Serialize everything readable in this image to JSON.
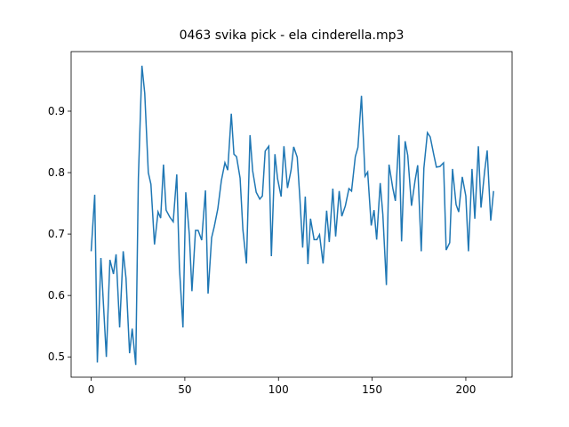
{
  "chart_data": {
    "type": "line",
    "title": "0463 svika pick - ela cinderella.mp3",
    "x": [
      0,
      1.9,
      3.3,
      5.2,
      8.1,
      10,
      11.9,
      13.3,
      15.2,
      17.1,
      18.6,
      20.5,
      21.9,
      23.8,
      25.2,
      27.1,
      28.6,
      30.5,
      31.9,
      33.8,
      35.7,
      37.1,
      38.6,
      40,
      41.9,
      43.8,
      45.7,
      47.1,
      49,
      50.5,
      52.4,
      53.8,
      55.7,
      57.1,
      59,
      61,
      62.4,
      64.3,
      65.7,
      67.6,
      69.5,
      71.4,
      72.9,
      74.8,
      76.2,
      77.6,
      79.5,
      81,
      82.9,
      84.8,
      86.2,
      88.1,
      90,
      91.4,
      92.9,
      94.8,
      96.2,
      98.1,
      99.5,
      101.4,
      102.9,
      104.8,
      106.7,
      108.1,
      110,
      111.4,
      112.9,
      114.3,
      115.7,
      117.1,
      119,
      120.5,
      121.9,
      123.8,
      125.7,
      127.1,
      129,
      130.5,
      132.4,
      133.8,
      135.7,
      137.6,
      139,
      141,
      142.4,
      144.3,
      146.2,
      147.6,
      149.5,
      151,
      152.4,
      154.3,
      155.7,
      157.6,
      159,
      161,
      162.4,
      164.3,
      165.7,
      167.6,
      169,
      171,
      172.9,
      174.3,
      176.2,
      177.6,
      179.5,
      181,
      182.9,
      184.3,
      186.2,
      188.1,
      189.5,
      191.4,
      192.9,
      194.8,
      196.2,
      198.1,
      200,
      201.4,
      203.3,
      204.8,
      206.7,
      208.1,
      210,
      211.4,
      213.3,
      214.8
    ],
    "series": [
      {
        "color": "#1f77b4",
        "values": [
          0.672,
          0.764,
          0.491,
          0.661,
          0.5,
          0.658,
          0.635,
          0.667,
          0.548,
          0.672,
          0.628,
          0.506,
          0.546,
          0.487,
          0.791,
          0.974,
          0.929,
          0.8,
          0.781,
          0.683,
          0.736,
          0.726,
          0.813,
          0.739,
          0.728,
          0.72,
          0.797,
          0.646,
          0.548,
          0.768,
          0.699,
          0.607,
          0.706,
          0.706,
          0.69,
          0.771,
          0.603,
          0.694,
          0.712,
          0.741,
          0.787,
          0.816,
          0.804,
          0.896,
          0.83,
          0.826,
          0.791,
          0.707,
          0.652,
          0.861,
          0.803,
          0.768,
          0.757,
          0.762,
          0.835,
          0.843,
          0.664,
          0.83,
          0.79,
          0.761,
          0.843,
          0.775,
          0.804,
          0.842,
          0.825,
          0.759,
          0.678,
          0.761,
          0.651,
          0.725,
          0.691,
          0.691,
          0.699,
          0.652,
          0.738,
          0.687,
          0.774,
          0.696,
          0.77,
          0.729,
          0.746,
          0.774,
          0.77,
          0.826,
          0.841,
          0.925,
          0.794,
          0.801,
          0.714,
          0.739,
          0.691,
          0.783,
          0.732,
          0.617,
          0.813,
          0.775,
          0.754,
          0.861,
          0.688,
          0.851,
          0.828,
          0.746,
          0.787,
          0.812,
          0.672,
          0.807,
          0.865,
          0.858,
          0.829,
          0.809,
          0.81,
          0.816,
          0.674,
          0.686,
          0.806,
          0.748,
          0.736,
          0.793,
          0.762,
          0.672,
          0.806,
          0.725,
          0.843,
          0.743,
          0.801,
          0.836,
          0.722,
          0.77
        ]
      }
    ],
    "xlim": [
      -10.7,
      224.7
    ],
    "ylim": [
      0.467,
      0.997
    ],
    "xticks": [
      0,
      50,
      100,
      150,
      200
    ],
    "yticks": [
      0.5,
      0.6,
      0.7,
      0.8,
      0.9
    ]
  }
}
